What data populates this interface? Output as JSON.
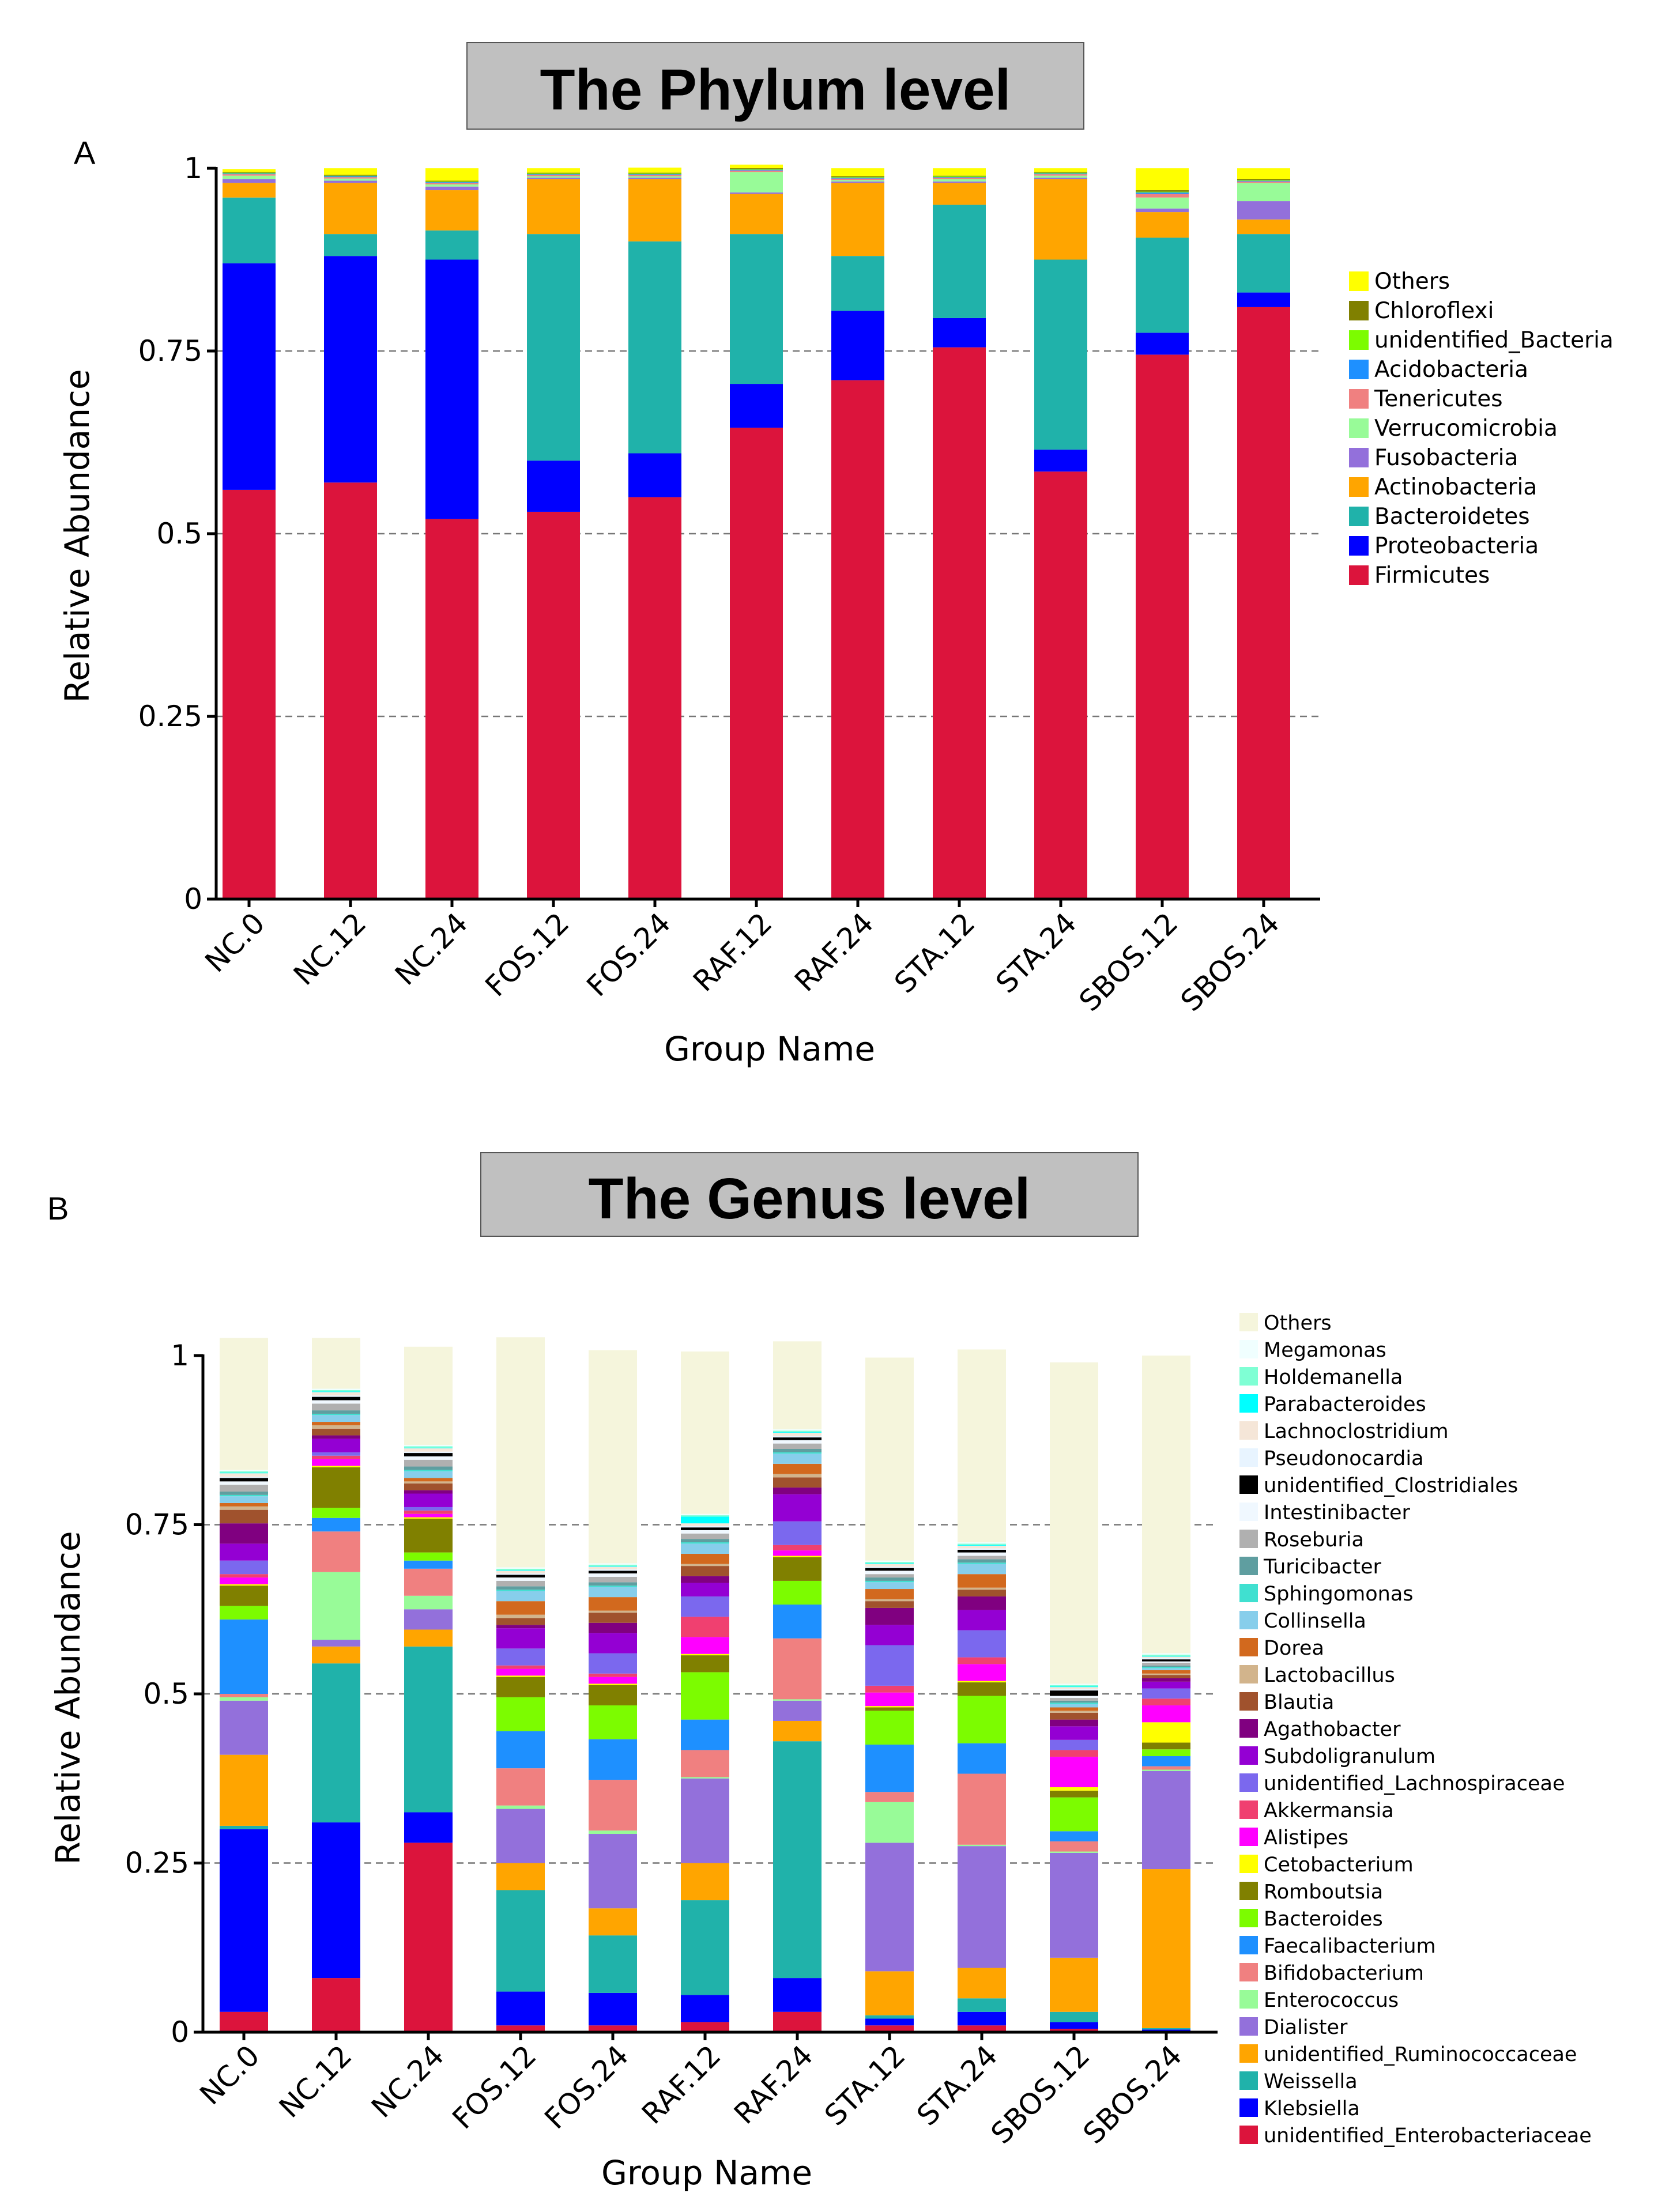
{
  "chart_data": [
    {
      "panel": "A",
      "title": "The Phylum level",
      "type": "bar",
      "stacked": true,
      "xlabel": "Group Name",
      "ylabel": "Relative Abundance",
      "ylim": [
        0,
        1
      ],
      "yticks": [
        {
          "v": 0,
          "t": "0"
        },
        {
          "v": 0.25,
          "t": "0.25"
        },
        {
          "v": 0.5,
          "t": "0.5"
        },
        {
          "v": 0.75,
          "t": "0.75"
        },
        {
          "v": 1,
          "t": "1"
        }
      ],
      "grid": true,
      "categories": [
        "NC.0",
        "NC.12",
        "NC.24",
        "FOS.12",
        "FOS.24",
        "RAF.12",
        "RAF.24",
        "STA.12",
        "STA.24",
        "SBOS.12",
        "SBOS.24"
      ],
      "series": [
        {
          "name": "Firmicutes",
          "color": "#DC143C",
          "values": [
            0.56,
            0.57,
            0.52,
            0.53,
            0.55,
            0.645,
            0.71,
            0.755,
            0.585,
            0.745,
            0.81
          ]
        },
        {
          "name": "Proteobacteria",
          "color": "#0000FF",
          "values": [
            0.31,
            0.31,
            0.355,
            0.07,
            0.06,
            0.06,
            0.095,
            0.04,
            0.03,
            0.03,
            0.02
          ]
        },
        {
          "name": "Bacteroidetes",
          "color": "#20B2AA",
          "values": [
            0.09,
            0.03,
            0.04,
            0.31,
            0.29,
            0.205,
            0.075,
            0.155,
            0.26,
            0.13,
            0.08
          ]
        },
        {
          "name": "Actinobacteria",
          "color": "#FFA500",
          "values": [
            0.02,
            0.07,
            0.055,
            0.075,
            0.085,
            0.055,
            0.1,
            0.03,
            0.11,
            0.035,
            0.02
          ]
        },
        {
          "name": "Fusobacteria",
          "color": "#9370DB",
          "values": [
            0.005,
            0.003,
            0.005,
            0.002,
            0.002,
            0.002,
            0.002,
            0.002,
            0.002,
            0.005,
            0.025
          ]
        },
        {
          "name": "Verrucomicrobia",
          "color": "#98FB98",
          "values": [
            0.005,
            0.003,
            0.003,
            0.002,
            0.002,
            0.028,
            0.002,
            0.003,
            0.003,
            0.015,
            0.025
          ]
        },
        {
          "name": "Tenericutes",
          "color": "#F08080",
          "values": [
            0.002,
            0.002,
            0.002,
            0.002,
            0.002,
            0.002,
            0.002,
            0.002,
            0.002,
            0.005,
            0.002
          ]
        },
        {
          "name": "Acidobacteria",
          "color": "#1E90FF",
          "values": [
            0.001,
            0.001,
            0.001,
            0.001,
            0.001,
            0.001,
            0.001,
            0.001,
            0.001,
            0.002,
            0.001
          ]
        },
        {
          "name": "unidentified_Bacteria",
          "color": "#7CFC00",
          "values": [
            0.001,
            0.001,
            0.001,
            0.001,
            0.001,
            0.001,
            0.001,
            0.001,
            0.001,
            0.001,
            0.001
          ]
        },
        {
          "name": "Chloroflexi",
          "color": "#808000",
          "values": [
            0.001,
            0.001,
            0.001,
            0.001,
            0.001,
            0.001,
            0.001,
            0.001,
            0.001,
            0.002,
            0.001
          ]
        },
        {
          "name": "Others",
          "color": "#FFFF00",
          "values": [
            0.004,
            0.009,
            0.017,
            0.006,
            0.007,
            0.005,
            0.011,
            0.01,
            0.005,
            0.03,
            0.015
          ]
        }
      ]
    },
    {
      "panel": "B",
      "title": "The Genus level",
      "type": "bar",
      "stacked": true,
      "xlabel": "Group Name",
      "ylabel": "Relative Abundance",
      "ylim": [
        0,
        1
      ],
      "yticks": [
        {
          "v": 0,
          "t": "0"
        },
        {
          "v": 0.25,
          "t": "0.25"
        },
        {
          "v": 0.5,
          "t": "0.5"
        },
        {
          "v": 0.75,
          "t": "0.75"
        },
        {
          "v": 1,
          "t": "1"
        }
      ],
      "grid": true,
      "categories": [
        "NC.0",
        "NC.12",
        "NC.24",
        "FOS.12",
        "FOS.24",
        "RAF.12",
        "RAF.24",
        "STA.12",
        "STA.24",
        "SBOS.12",
        "SBOS.24"
      ],
      "series": [
        {
          "name": "unidentified_Enterobacteriaceae",
          "color": "#DC143C",
          "values": [
            0.03,
            0.08,
            0.28,
            0.01,
            0.01,
            0.015,
            0.03,
            0.01,
            0.01,
            0.005,
            0.002
          ]
        },
        {
          "name": "Klebsiella",
          "color": "#0000FF",
          "values": [
            0.27,
            0.23,
            0.045,
            0.05,
            0.048,
            0.04,
            0.05,
            0.01,
            0.02,
            0.01,
            0.002
          ]
        },
        {
          "name": "Weissella",
          "color": "#20B2AA",
          "values": [
            0.005,
            0.235,
            0.245,
            0.15,
            0.085,
            0.14,
            0.35,
            0.005,
            0.02,
            0.015,
            0.002
          ]
        },
        {
          "name": "unidentified_Ruminococcaceae",
          "color": "#FFA500",
          "values": [
            0.105,
            0.025,
            0.025,
            0.04,
            0.04,
            0.055,
            0.03,
            0.065,
            0.045,
            0.08,
            0.235
          ]
        },
        {
          "name": "Dialister",
          "color": "#9370DB",
          "values": [
            0.08,
            0.01,
            0.03,
            0.08,
            0.11,
            0.125,
            0.03,
            0.19,
            0.18,
            0.155,
            0.145
          ]
        },
        {
          "name": "Enterococcus",
          "color": "#98FB98",
          "values": [
            0.005,
            0.1,
            0.02,
            0.005,
            0.005,
            0.002,
            0.002,
            0.06,
            0.002,
            0.002,
            0.002
          ]
        },
        {
          "name": "Bifidobacterium",
          "color": "#F08080",
          "values": [
            0.005,
            0.06,
            0.04,
            0.055,
            0.075,
            0.04,
            0.09,
            0.015,
            0.105,
            0.015,
            0.005
          ]
        },
        {
          "name": "Faecalibacterium",
          "color": "#1E90FF",
          "values": [
            0.11,
            0.02,
            0.012,
            0.055,
            0.06,
            0.045,
            0.05,
            0.07,
            0.045,
            0.015,
            0.015
          ]
        },
        {
          "name": "Bacteroides",
          "color": "#7CFC00",
          "values": [
            0.02,
            0.015,
            0.012,
            0.05,
            0.05,
            0.07,
            0.035,
            0.05,
            0.07,
            0.05,
            0.01
          ]
        },
        {
          "name": "Romboutsia",
          "color": "#808000",
          "values": [
            0.03,
            0.06,
            0.05,
            0.03,
            0.03,
            0.025,
            0.035,
            0.005,
            0.02,
            0.01,
            0.01
          ]
        },
        {
          "name": "Cetobacterium",
          "color": "#FFFF00",
          "values": [
            0.002,
            0.002,
            0.002,
            0.002,
            0.002,
            0.002,
            0.002,
            0.002,
            0.002,
            0.005,
            0.03
          ]
        },
        {
          "name": "Alistipes",
          "color": "#FF00FF",
          "values": [
            0.01,
            0.01,
            0.005,
            0.01,
            0.01,
            0.025,
            0.008,
            0.02,
            0.025,
            0.045,
            0.025
          ]
        },
        {
          "name": "Akkermansia",
          "color": "#F04070",
          "values": [
            0.005,
            0.005,
            0.005,
            0.005,
            0.005,
            0.03,
            0.008,
            0.01,
            0.01,
            0.01,
            0.01
          ]
        },
        {
          "name": "unidentified_Lachnospiraceae",
          "color": "#7B68EE",
          "values": [
            0.02,
            0.005,
            0.005,
            0.025,
            0.03,
            0.03,
            0.035,
            0.06,
            0.04,
            0.015,
            0.015
          ]
        },
        {
          "name": "Subdoligranulum",
          "color": "#9400D3",
          "values": [
            0.025,
            0.02,
            0.02,
            0.03,
            0.03,
            0.02,
            0.04,
            0.03,
            0.03,
            0.02,
            0.01
          ]
        },
        {
          "name": "Agathobacter",
          "color": "#800080",
          "values": [
            0.03,
            0.005,
            0.005,
            0.005,
            0.015,
            0.01,
            0.01,
            0.025,
            0.02,
            0.01,
            0.005
          ]
        },
        {
          "name": "Blautia",
          "color": "#A0522D",
          "values": [
            0.02,
            0.01,
            0.01,
            0.01,
            0.015,
            0.015,
            0.015,
            0.01,
            0.01,
            0.01,
            0.005
          ]
        },
        {
          "name": "Lactobacillus",
          "color": "#D2B48C",
          "values": [
            0.005,
            0.005,
            0.003,
            0.005,
            0.003,
            0.003,
            0.005,
            0.003,
            0.003,
            0.003,
            0.002
          ]
        },
        {
          "name": "Dorea",
          "color": "#D2691E",
          "values": [
            0.005,
            0.005,
            0.005,
            0.02,
            0.02,
            0.015,
            0.015,
            0.015,
            0.02,
            0.005,
            0.005
          ]
        },
        {
          "name": "Collinsella",
          "color": "#87CEEB",
          "values": [
            0.01,
            0.01,
            0.01,
            0.015,
            0.015,
            0.015,
            0.015,
            0.01,
            0.015,
            0.005,
            0.003
          ]
        },
        {
          "name": "Sphingomonas",
          "color": "#40E0D0",
          "values": [
            0.002,
            0.002,
            0.002,
            0.002,
            0.002,
            0.002,
            0.002,
            0.002,
            0.002,
            0.002,
            0.002
          ]
        },
        {
          "name": "Turicibacter",
          "color": "#5F9EA0",
          "values": [
            0.005,
            0.005,
            0.005,
            0.005,
            0.005,
            0.005,
            0.005,
            0.005,
            0.005,
            0.003,
            0.002
          ]
        },
        {
          "name": "Roseburia",
          "color": "#B0B0B0",
          "values": [
            0.01,
            0.01,
            0.01,
            0.008,
            0.008,
            0.008,
            0.008,
            0.005,
            0.005,
            0.004,
            0.004
          ]
        },
        {
          "name": "Intestinibacter",
          "color": "#F0F8FF",
          "values": [
            0.005,
            0.005,
            0.005,
            0.005,
            0.005,
            0.005,
            0.005,
            0.005,
            0.005,
            0.003,
            0.002
          ]
        },
        {
          "name": "unidentified_Clostridiales",
          "color": "#000000",
          "values": [
            0.005,
            0.005,
            0.005,
            0.004,
            0.004,
            0.004,
            0.004,
            0.004,
            0.004,
            0.008,
            0.003
          ]
        },
        {
          "name": "Pseudonocardia",
          "color": "#E8F4FF",
          "values": [
            0.002,
            0.002,
            0.002,
            0.002,
            0.002,
            0.002,
            0.002,
            0.002,
            0.002,
            0.002,
            0.002
          ]
        },
        {
          "name": "Lachnoclostridium",
          "color": "#F5E6D8",
          "values": [
            0.005,
            0.005,
            0.005,
            0.004,
            0.004,
            0.004,
            0.005,
            0.004,
            0.004,
            0.003,
            0.002
          ]
        },
        {
          "name": "Parabacteroides",
          "color": "#00FFFF",
          "values": [
            0.001,
            0.001,
            0.001,
            0.001,
            0.001,
            0.01,
            0.001,
            0.001,
            0.001,
            0.001,
            0.001
          ]
        },
        {
          "name": "Holdemanella",
          "color": "#7FFFD4",
          "values": [
            0.002,
            0.002,
            0.002,
            0.002,
            0.002,
            0.002,
            0.002,
            0.002,
            0.002,
            0.002,
            0.002
          ]
        },
        {
          "name": "Megamonas",
          "color": "#F0FFFF",
          "values": [
            0.002,
            0.002,
            0.002,
            0.002,
            0.002,
            0.002,
            0.002,
            0.002,
            0.002,
            0.002,
            0.002
          ]
        },
        {
          "name": "Others",
          "color": "#F5F5DC",
          "values": [
            0.195,
            0.075,
            0.145,
            0.34,
            0.315,
            0.24,
            0.13,
            0.3,
            0.285,
            0.475,
            0.44
          ]
        }
      ]
    }
  ]
}
